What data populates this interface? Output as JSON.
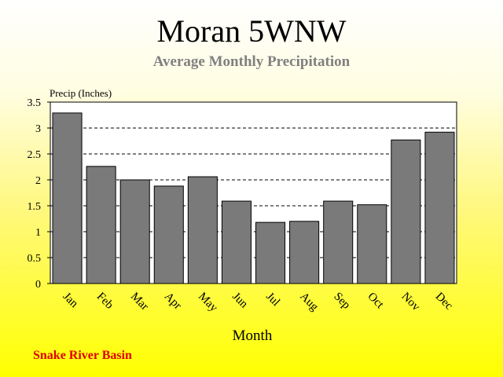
{
  "title": "Moran 5WNW",
  "subtitle": "Average Monthly Precipitation",
  "footer": "Snake River Basin",
  "colors": {
    "bar": "#7a7a7a",
    "plot_bg": "#ffffff",
    "footer_text": "#e00000",
    "subtitle_text": "#808080"
  },
  "chart_data": {
    "type": "bar",
    "title": "Moran 5WNW",
    "subtitle": "Average Monthly Precipitation",
    "xlabel": "Month",
    "ylabel": "Precip (Inches)",
    "categories": [
      "Jan",
      "Feb",
      "Mar",
      "Apr",
      "May",
      "Jun",
      "Jul",
      "Aug",
      "Sep",
      "Oct",
      "Nov",
      "Dec"
    ],
    "values": [
      3.29,
      2.26,
      2.0,
      1.88,
      2.06,
      1.59,
      1.18,
      1.2,
      1.59,
      1.52,
      2.77,
      2.92
    ],
    "ylim": [
      0,
      3.5
    ],
    "yticks": [
      "0",
      "0.5",
      "1",
      "1.5",
      "2",
      "2.5",
      "3",
      "3.5"
    ],
    "grid": "dashed horizontal lines at each y tick"
  }
}
